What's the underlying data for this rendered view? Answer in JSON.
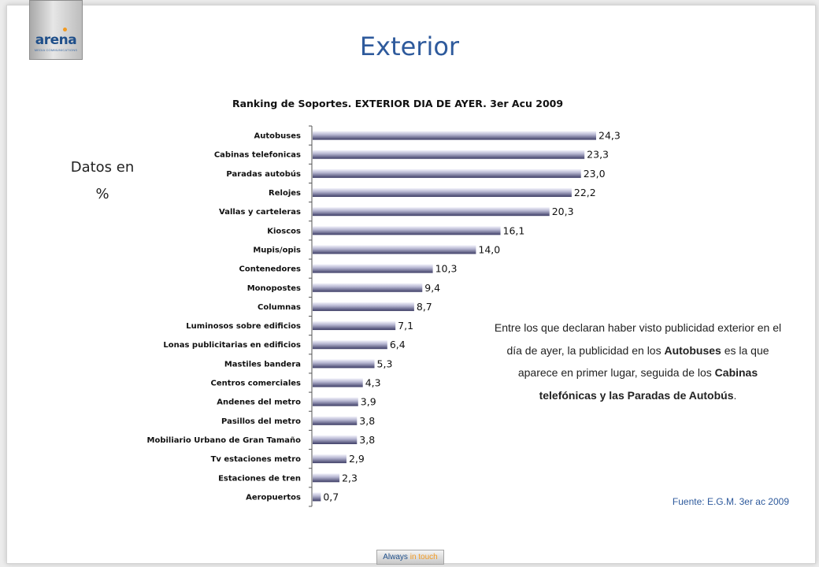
{
  "logo": {
    "word": "arena",
    "sub": "MEDIA COMMUNICATIONS"
  },
  "page": {
    "title": "Exterior"
  },
  "unit_note": {
    "line1": "Datos en",
    "line2": "%"
  },
  "chart_data": {
    "type": "bar",
    "orientation": "horizontal",
    "title": "Ranking de Soportes. EXTERIOR DIA DE AYER. 3er Acu 2009",
    "xlabel": "",
    "ylabel": "",
    "categories": [
      "Autobuses",
      "Cabinas telefonicas",
      "Paradas autobús",
      "Relojes",
      "Vallas y carteleras",
      "Kioscos",
      "Mupis/opis",
      "Contenedores",
      "Monopostes",
      "Columnas",
      "Luminosos sobre edificios",
      "Lonas publicitarias en edificios",
      "Mastiles bandera",
      "Centros comerciales",
      "Andenes del metro",
      "Pasillos del metro",
      "Mobiliario Urbano de Gran Tamaño",
      "Tv estaciones metro",
      "Estaciones de tren",
      "Aeropuertos"
    ],
    "values": [
      24.3,
      23.3,
      23.0,
      22.2,
      20.3,
      16.1,
      14.0,
      10.3,
      9.4,
      8.7,
      7.1,
      6.4,
      5.3,
      4.3,
      3.9,
      3.8,
      3.8,
      2.9,
      2.3,
      0.7
    ],
    "value_labels": [
      "24,3",
      "23,3",
      "23,0",
      "22,2",
      "20,3",
      "16,1",
      "14,0",
      "10,3",
      "9,4",
      "8,7",
      "7,1",
      "6,4",
      "5,3",
      "4,3",
      "3,9",
      "3,8",
      "3,8",
      "2,9",
      "2,3",
      "0,7"
    ],
    "xlim": [
      0,
      25
    ],
    "grid": false,
    "legend": "none",
    "bar_color": "#5e5e90"
  },
  "note": {
    "p1": "Entre los que declaran haber visto publicidad exterior en el día de ayer, la publicidad en los",
    "b1": "Autobuses",
    "p2": " es la que aparece en primer lugar, seguida de los ",
    "b2": "Cabinas telefónicas y las Paradas de Autobús",
    "p3": "."
  },
  "source": "Fuente: E.G.M. 3er ac 2009",
  "footer": {
    "word1": "Always",
    "word2": "in touch"
  }
}
